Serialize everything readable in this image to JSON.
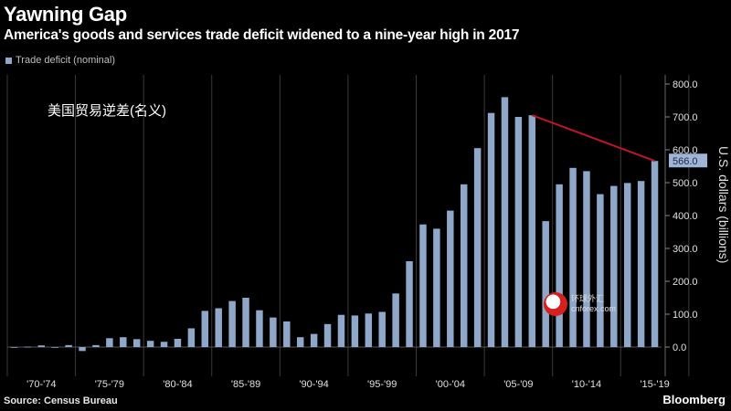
{
  "header": {
    "title": "Yawning Gap",
    "subtitle": "America's goods and services trade deficit widened to a nine-year high in 2017",
    "legend_label": "Trade deficit (nominal)",
    "annotation": "美国贸易逆差(名义)",
    "source": "Source: Census Bureau",
    "brand": "Bloomberg",
    "watermark_line1": "环球外汇",
    "watermark_line2": "cnforex.com"
  },
  "colors": {
    "bar": "#8fa8c9",
    "trend": "#c0142b",
    "grid": "#3a3a3a",
    "highlight": "#9fb4d6"
  },
  "chart_data": {
    "type": "bar",
    "xlabel": "",
    "ylabel": "U.S. dollars (billions)",
    "ylim": [
      0,
      800
    ],
    "yticks": [
      0,
      100,
      200,
      300,
      400,
      500,
      600,
      700,
      800
    ],
    "ytick_labels": [
      "0.0",
      "100.0",
      "200.0",
      "300.0",
      "400.0",
      "500.0",
      "600.0",
      "700.0",
      "800.0"
    ],
    "categories": [
      "1970",
      "1971",
      "1972",
      "1973",
      "1974",
      "1975",
      "1976",
      "1977",
      "1978",
      "1979",
      "1980",
      "1981",
      "1982",
      "1983",
      "1984",
      "1985",
      "1986",
      "1987",
      "1988",
      "1989",
      "1990",
      "1991",
      "1992",
      "1993",
      "1994",
      "1995",
      "1996",
      "1997",
      "1998",
      "1999",
      "2000",
      "2001",
      "2002",
      "2003",
      "2004",
      "2005",
      "2006",
      "2007",
      "2008",
      "2009",
      "2010",
      "2011",
      "2012",
      "2013",
      "2014",
      "2015",
      "2016",
      "2017"
    ],
    "values": [
      -2,
      1,
      5,
      -2,
      6,
      -12,
      6,
      27,
      30,
      24,
      19,
      16,
      25,
      57,
      110,
      118,
      140,
      150,
      112,
      90,
      78,
      30,
      40,
      70,
      98,
      96,
      102,
      107,
      163,
      261,
      373,
      360,
      415,
      495,
      605,
      712,
      760,
      700,
      705,
      383,
      495,
      545,
      535,
      465,
      490,
      499,
      505,
      566
    ],
    "period_labels": [
      "'70-'74",
      "'75-'79",
      "'80-'84",
      "'85-'89",
      "'90-'94",
      "'95-'99",
      "'00-'04",
      "'05-'09",
      "'10-'14",
      "'15-'19"
    ],
    "highlight_label": "566.0",
    "trend_from": "2008",
    "trend_to": "2017",
    "grid": "vertical"
  }
}
